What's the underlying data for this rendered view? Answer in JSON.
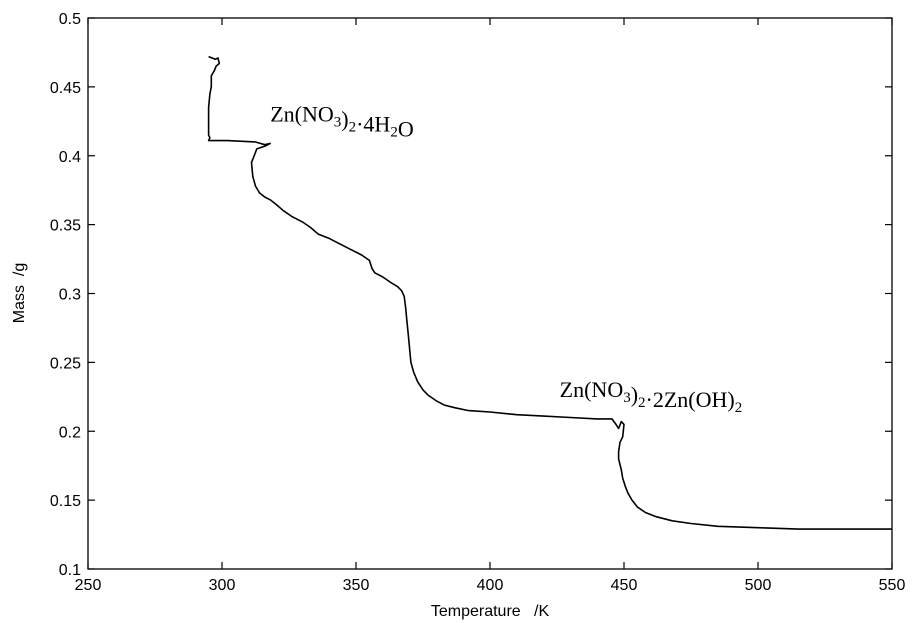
{
  "chart_data": {
    "type": "line",
    "xlabel": "Temperature   /K",
    "ylabel": "Mass  /g",
    "xlim": [
      250,
      550
    ],
    "ylim": [
      0.1,
      0.5
    ],
    "xticks": [
      250,
      300,
      350,
      400,
      450,
      500,
      550
    ],
    "xtick_labels": [
      "250",
      "300",
      "350",
      "400",
      "450",
      "500",
      "550"
    ],
    "yticks": [
      0.1,
      0.15,
      0.2,
      0.25,
      0.3,
      0.35,
      0.4,
      0.45,
      0.5
    ],
    "ytick_labels": [
      "0.1",
      "0.15",
      "0.2",
      "0.25",
      "0.3",
      "0.35",
      "0.4",
      "0.45",
      "0.5"
    ],
    "grid": false,
    "series": [
      {
        "x": [
          295.0,
          297.5,
          298.5,
          299.0,
          297.8,
          297.2,
          296.0,
          296.0,
          295.5,
          295.0,
          295.0,
          295.0,
          295.0,
          295.5,
          295.0,
          302.0,
          312.5,
          316.0,
          318.0,
          316.0,
          313.0,
          312.0,
          311.0,
          311.5,
          312.5,
          314.0,
          316.0,
          318.0,
          320.0,
          323.0,
          326.0,
          330.0,
          333.0,
          336.0,
          340.0,
          344.0,
          348.0,
          352.0,
          355.0,
          356.0,
          357.0,
          360.0,
          363.0,
          365.5,
          367.0,
          368.0,
          368.5,
          369.0,
          369.5,
          370.0,
          370.5,
          371.5,
          373.0,
          375.0,
          377.0,
          380.0,
          383.0,
          387.0,
          392.0,
          400.0,
          410.0,
          420.0,
          430.0,
          440.0,
          445.5,
          447.0,
          448.0,
          449.0,
          450.0,
          449.5,
          448.5,
          448.0,
          448.0,
          449.0,
          449.5,
          450.5,
          451.5,
          453.0,
          455.0,
          458.0,
          462.0,
          468.0,
          475.0,
          485.0,
          500.0,
          515.0,
          530.0,
          550.0
        ],
        "y": [
          0.472,
          0.47,
          0.471,
          0.467,
          0.465,
          0.462,
          0.458,
          0.45,
          0.445,
          0.435,
          0.425,
          0.418,
          0.415,
          0.413,
          0.411,
          0.411,
          0.41,
          0.408,
          0.409,
          0.407,
          0.405,
          0.4,
          0.395,
          0.385,
          0.378,
          0.373,
          0.37,
          0.368,
          0.365,
          0.36,
          0.356,
          0.352,
          0.348,
          0.343,
          0.34,
          0.336,
          0.332,
          0.328,
          0.324,
          0.318,
          0.315,
          0.312,
          0.308,
          0.305,
          0.302,
          0.298,
          0.29,
          0.28,
          0.27,
          0.26,
          0.25,
          0.243,
          0.236,
          0.23,
          0.226,
          0.222,
          0.219,
          0.217,
          0.215,
          0.214,
          0.212,
          0.211,
          0.21,
          0.209,
          0.209,
          0.205,
          0.202,
          0.207,
          0.205,
          0.196,
          0.192,
          0.185,
          0.18,
          0.172,
          0.166,
          0.16,
          0.155,
          0.15,
          0.145,
          0.141,
          0.138,
          0.135,
          0.133,
          0.131,
          0.13,
          0.129,
          0.129,
          0.129
        ]
      }
    ],
    "annotations": [
      {
        "x": 318,
        "y": 0.425,
        "parts": [
          [
            "Zn(NO",
            false
          ],
          [
            "3",
            true
          ],
          [
            ")",
            false
          ],
          [
            "2",
            true
          ],
          [
            "·4H",
            false
          ],
          [
            "2",
            true
          ],
          [
            "O",
            false
          ]
        ]
      },
      {
        "x": 426,
        "y": 0.225,
        "parts": [
          [
            "Zn(NO",
            false
          ],
          [
            "3",
            true
          ],
          [
            ")",
            false
          ],
          [
            "2",
            true
          ],
          [
            "·2Zn(OH)",
            false
          ],
          [
            "2",
            true
          ]
        ]
      }
    ]
  }
}
